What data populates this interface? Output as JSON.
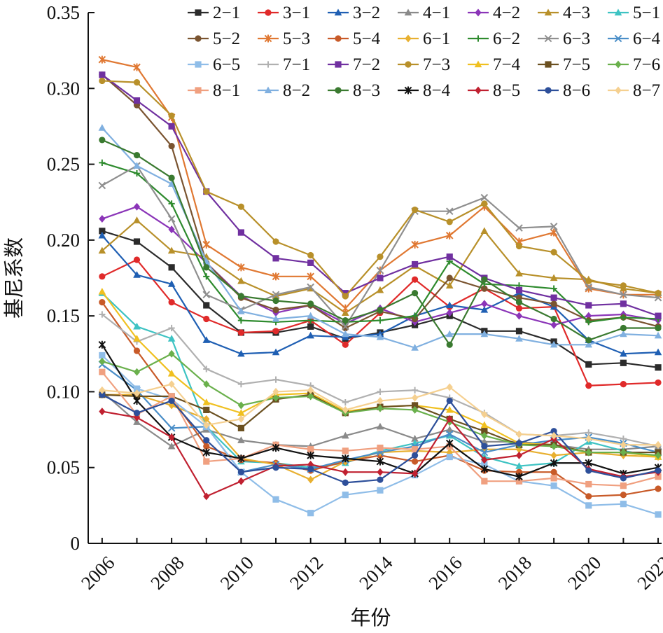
{
  "chart_data": {
    "type": "line",
    "title": "",
    "xlabel": "年份",
    "ylabel": "基尼系数",
    "x": [
      2006,
      2007,
      2008,
      2009,
      2010,
      2011,
      2012,
      2013,
      2014,
      2015,
      2016,
      2017,
      2018,
      2019,
      2020,
      2021,
      2022
    ],
    "xticks": [
      "2006",
      "2008",
      "2010",
      "2012",
      "2014",
      "2016",
      "2018",
      "2020",
      "2022"
    ],
    "yticks": [
      "0",
      "0.05",
      "0.10",
      "0.15",
      "0.20",
      "0.25",
      "0.30",
      "0.35"
    ],
    "xlim": [
      2005.6,
      2022.1
    ],
    "ylim": [
      0,
      0.35
    ],
    "grid": false,
    "legend_position": "top-right",
    "series": [
      {
        "name": "2−1",
        "color": "#2b2b2b",
        "marker": "square",
        "values": [
          0.206,
          0.199,
          0.182,
          0.157,
          0.139,
          0.139,
          0.143,
          0.135,
          0.139,
          0.144,
          0.15,
          0.14,
          0.14,
          0.133,
          0.118,
          0.119,
          0.116
        ]
      },
      {
        "name": "3−1",
        "color": "#e02a2a",
        "marker": "circle",
        "values": [
          0.176,
          0.187,
          0.159,
          0.148,
          0.139,
          0.14,
          0.147,
          0.131,
          0.152,
          0.174,
          0.156,
          0.168,
          0.155,
          0.156,
          0.104,
          0.105,
          0.106
        ]
      },
      {
        "name": "3−2",
        "color": "#1f5fb3",
        "marker": "triangle",
        "values": [
          0.203,
          0.177,
          0.171,
          0.134,
          0.125,
          0.126,
          0.137,
          0.136,
          0.138,
          0.15,
          0.157,
          0.154,
          0.165,
          0.156,
          0.134,
          0.125,
          0.126
        ]
      },
      {
        "name": "4−1",
        "color": "#8a8a8a",
        "marker": "triangle",
        "values": [
          0.1,
          0.08,
          0.064,
          0.075,
          0.068,
          0.065,
          0.064,
          0.071,
          0.077,
          0.069,
          0.075,
          0.067,
          0.067,
          0.065,
          0.062,
          0.062,
          0.064
        ]
      },
      {
        "name": "4−2",
        "color": "#8b35b8",
        "marker": "diamond",
        "values": [
          0.214,
          0.222,
          0.207,
          0.185,
          0.163,
          0.152,
          0.157,
          0.145,
          0.155,
          0.146,
          0.152,
          0.158,
          0.15,
          0.144,
          0.15,
          0.151,
          0.147
        ]
      },
      {
        "name": "4−3",
        "color": "#b8902a",
        "marker": "triangle",
        "values": [
          0.193,
          0.213,
          0.193,
          0.189,
          0.173,
          0.163,
          0.168,
          0.152,
          0.167,
          0.183,
          0.17,
          0.206,
          0.178,
          0.175,
          0.174,
          0.168,
          0.165
        ]
      },
      {
        "name": "5−1",
        "color": "#3ec3c3",
        "marker": "triangle",
        "values": [
          0.165,
          0.143,
          0.135,
          0.077,
          0.054,
          0.053,
          0.05,
          0.053,
          0.061,
          0.066,
          0.071,
          0.057,
          0.051,
          0.053,
          0.067,
          0.061,
          0.057
        ]
      },
      {
        "name": "5−2",
        "color": "#7a5430",
        "marker": "circle",
        "values": [
          0.309,
          0.289,
          0.262,
          0.185,
          0.162,
          0.154,
          0.157,
          0.142,
          0.153,
          0.148,
          0.175,
          0.168,
          0.162,
          0.158,
          0.147,
          0.149,
          0.143
        ]
      },
      {
        "name": "5−3",
        "color": "#e07832",
        "marker": "star",
        "values": [
          0.319,
          0.314,
          0.281,
          0.197,
          0.182,
          0.176,
          0.176,
          0.155,
          0.18,
          0.197,
          0.203,
          0.222,
          0.199,
          0.205,
          0.168,
          0.164,
          0.164
        ]
      },
      {
        "name": "5−4",
        "color": "#c85a28",
        "marker": "circle",
        "values": [
          0.159,
          0.127,
          0.096,
          0.064,
          0.055,
          0.053,
          0.048,
          0.054,
          0.058,
          0.054,
          0.058,
          0.048,
          0.047,
          0.047,
          0.031,
          0.032,
          0.036
        ]
      },
      {
        "name": "6−1",
        "color": "#e8b030",
        "marker": "diamond",
        "values": [
          0.098,
          0.098,
          0.091,
          0.082,
          0.056,
          0.052,
          0.042,
          0.054,
          0.06,
          0.061,
          0.06,
          0.062,
          0.062,
          0.058,
          0.06,
          0.058,
          0.057
        ]
      },
      {
        "name": "6−2",
        "color": "#2e8b2e",
        "marker": "plus",
        "values": [
          0.251,
          0.244,
          0.224,
          0.176,
          0.147,
          0.146,
          0.147,
          0.146,
          0.147,
          0.15,
          0.186,
          0.171,
          0.17,
          0.168,
          0.146,
          0.149,
          0.148
        ]
      },
      {
        "name": "6−3",
        "color": "#8f8f8f",
        "marker": "x",
        "values": [
          0.236,
          0.249,
          0.214,
          0.164,
          0.154,
          0.164,
          0.169,
          0.143,
          0.18,
          0.219,
          0.219,
          0.228,
          0.208,
          0.209,
          0.169,
          0.164,
          0.162
        ]
      },
      {
        "name": "6−4",
        "color": "#4a8ec8",
        "marker": "x",
        "values": [
          0.118,
          0.101,
          0.076,
          0.077,
          0.047,
          0.052,
          0.049,
          0.055,
          0.06,
          0.064,
          0.072,
          0.06,
          0.065,
          0.068,
          0.07,
          0.066,
          0.06
        ]
      },
      {
        "name": "6−5",
        "color": "#8fbde8",
        "marker": "square",
        "values": [
          0.124,
          0.102,
          0.095,
          0.077,
          0.047,
          0.029,
          0.02,
          0.032,
          0.035,
          0.045,
          0.057,
          0.052,
          0.041,
          0.038,
          0.025,
          0.026,
          0.019
        ]
      },
      {
        "name": "7−1",
        "color": "#b0b0b0",
        "marker": "plus",
        "values": [
          0.151,
          0.133,
          0.142,
          0.115,
          0.105,
          0.108,
          0.104,
          0.093,
          0.1,
          0.101,
          0.096,
          0.086,
          0.072,
          0.071,
          0.073,
          0.069,
          0.064
        ]
      },
      {
        "name": "7−2",
        "color": "#7030a0",
        "marker": "square",
        "values": [
          0.309,
          0.292,
          0.275,
          0.232,
          0.205,
          0.188,
          0.185,
          0.165,
          0.175,
          0.184,
          0.189,
          0.175,
          0.167,
          0.162,
          0.157,
          0.158,
          0.15
        ]
      },
      {
        "name": "7−3",
        "color": "#b8902a",
        "marker": "circle",
        "values": [
          0.305,
          0.304,
          0.282,
          0.232,
          0.222,
          0.199,
          0.19,
          0.163,
          0.189,
          0.22,
          0.212,
          0.224,
          0.196,
          0.192,
          0.173,
          0.17,
          0.165
        ]
      },
      {
        "name": "7−4",
        "color": "#f0c020",
        "marker": "triangle",
        "values": [
          0.166,
          0.135,
          0.112,
          0.093,
          0.086,
          0.098,
          0.099,
          0.087,
          0.09,
          0.091,
          0.088,
          0.078,
          0.066,
          0.065,
          0.06,
          0.06,
          0.057
        ]
      },
      {
        "name": "7−5",
        "color": "#6b5020",
        "marker": "square",
        "values": [
          0.098,
          0.097,
          0.097,
          0.088,
          0.076,
          0.095,
          0.098,
          0.086,
          0.09,
          0.091,
          0.082,
          0.074,
          0.065,
          0.065,
          0.06,
          0.06,
          0.06
        ]
      },
      {
        "name": "7−6",
        "color": "#6ab04c",
        "marker": "diamond",
        "values": [
          0.12,
          0.113,
          0.125,
          0.105,
          0.091,
          0.096,
          0.097,
          0.086,
          0.089,
          0.088,
          0.08,
          0.071,
          0.065,
          0.064,
          0.06,
          0.06,
          0.058
        ]
      },
      {
        "name": "8−1",
        "color": "#f0a080",
        "marker": "square",
        "values": [
          0.113,
          0.085,
          0.097,
          0.054,
          0.056,
          0.065,
          0.062,
          0.061,
          0.063,
          0.062,
          0.064,
          0.041,
          0.041,
          0.043,
          0.039,
          0.038,
          0.044
        ]
      },
      {
        "name": "8−2",
        "color": "#80b0e0",
        "marker": "triangle",
        "values": [
          0.274,
          0.249,
          0.237,
          0.186,
          0.153,
          0.148,
          0.15,
          0.138,
          0.136,
          0.129,
          0.138,
          0.138,
          0.135,
          0.131,
          0.131,
          0.138,
          0.137
        ]
      },
      {
        "name": "8−3",
        "color": "#3a7a30",
        "marker": "circle",
        "values": [
          0.266,
          0.256,
          0.241,
          0.182,
          0.163,
          0.16,
          0.158,
          0.147,
          0.154,
          0.165,
          0.131,
          0.174,
          0.159,
          0.148,
          0.134,
          0.142,
          0.142
        ]
      },
      {
        "name": "8−4",
        "color": "#111111",
        "marker": "star",
        "values": [
          0.131,
          0.094,
          0.07,
          0.06,
          0.056,
          0.063,
          0.058,
          0.056,
          0.054,
          0.046,
          0.066,
          0.049,
          0.044,
          0.053,
          0.053,
          0.046,
          0.05
        ]
      },
      {
        "name": "8−5",
        "color": "#c02030",
        "marker": "diamond",
        "values": [
          0.087,
          0.083,
          0.07,
          0.031,
          0.041,
          0.051,
          0.052,
          0.047,
          0.047,
          0.046,
          0.082,
          0.055,
          0.058,
          0.069,
          0.049,
          0.044,
          0.047
        ]
      },
      {
        "name": "8−6",
        "color": "#2d4f9a",
        "marker": "circle",
        "values": [
          0.098,
          0.086,
          0.094,
          0.068,
          0.047,
          0.05,
          0.049,
          0.04,
          0.042,
          0.058,
          0.094,
          0.064,
          0.066,
          0.074,
          0.048,
          0.043,
          0.048
        ]
      },
      {
        "name": "8−7",
        "color": "#f5d090",
        "marker": "diamond",
        "values": [
          0.101,
          0.099,
          0.105,
          0.078,
          0.082,
          0.1,
          0.101,
          0.088,
          0.094,
          0.096,
          0.103,
          0.085,
          0.072,
          0.071,
          0.069,
          0.065,
          0.065
        ]
      }
    ]
  }
}
